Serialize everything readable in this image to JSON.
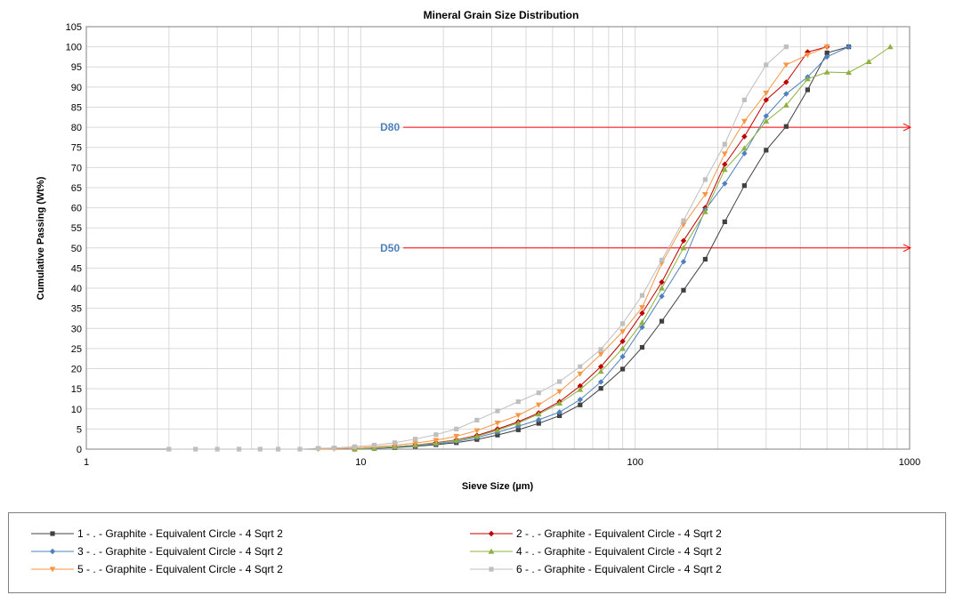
{
  "chart_data": {
    "type": "line",
    "title": "Mineral Grain Size Distribution",
    "xlabel": "Sieve Size (µm)",
    "ylabel": "Cumulative Passing (Wt%)",
    "xscale": "log",
    "xlim": [
      1,
      1000
    ],
    "ylim": [
      0,
      105
    ],
    "x_ticks": [
      "1",
      "10",
      "100",
      "1000"
    ],
    "y_ticks": [
      "0",
      "5",
      "10",
      "15",
      "20",
      "25",
      "30",
      "35",
      "40",
      "45",
      "50",
      "55",
      "60",
      "65",
      "70",
      "75",
      "80",
      "85",
      "90",
      "95",
      "100",
      "105"
    ],
    "grid": true,
    "legend_position": "bottom",
    "reference_lines": [
      {
        "label": "D80",
        "y": 80,
        "color": "#ff0000",
        "label_color": "#4f81bd"
      },
      {
        "label": "D50",
        "y": 50,
        "color": "#ff0000",
        "label_color": "#4f81bd"
      }
    ],
    "series": [
      {
        "name": "1 - . - Graphite - Equivalent Circle - 4 Sqrt 2",
        "color": "#404040",
        "marker": "square",
        "x": [
          9.5,
          11.2,
          13.3,
          15.8,
          18.8,
          22.3,
          26.5,
          31.5,
          37.5,
          44.5,
          53,
          63,
          75,
          90,
          106,
          125,
          150,
          180,
          212,
          250,
          300,
          355,
          425,
          500,
          600
        ],
        "y": [
          0,
          0.2,
          0.4,
          0.7,
          1.1,
          1.6,
          2.4,
          3.5,
          4.8,
          6.4,
          8.3,
          11.0,
          15.1,
          19.9,
          25.3,
          31.8,
          39.5,
          47.2,
          56.5,
          65.5,
          74.3,
          80.2,
          89.3,
          98.5,
          100
        ]
      },
      {
        "name": "2 - . - Graphite - Equivalent Circle - 4 Sqrt 2",
        "color": "#c00000",
        "marker": "diamond",
        "x": [
          9.5,
          11.2,
          13.3,
          15.8,
          18.8,
          22.3,
          26.5,
          31.5,
          37.5,
          44.5,
          53,
          63,
          75,
          90,
          106,
          125,
          150,
          180,
          212,
          250,
          300,
          355,
          425,
          500
        ],
        "y": [
          0,
          0.3,
          0.6,
          1.0,
          1.6,
          2.3,
          3.4,
          5.0,
          6.8,
          9.0,
          11.8,
          15.7,
          20.5,
          26.8,
          33.8,
          41.5,
          51.8,
          60.0,
          70.8,
          77.7,
          86.8,
          91.2,
          98.7,
          100
        ]
      },
      {
        "name": "3 - . - Graphite - Equivalent Circle - 4 Sqrt 2",
        "color": "#4f81bd",
        "marker": "diamond",
        "x": [
          9.5,
          11.2,
          13.3,
          15.8,
          18.8,
          22.3,
          26.5,
          31.5,
          37.5,
          44.5,
          53,
          63,
          75,
          90,
          106,
          125,
          150,
          180,
          212,
          250,
          300,
          355,
          425,
          500,
          600
        ],
        "y": [
          0,
          0.2,
          0.5,
          0.8,
          1.3,
          1.9,
          2.9,
          4.2,
          5.7,
          7.3,
          9.2,
          12.3,
          16.7,
          23.0,
          30.3,
          38.0,
          46.6,
          59.5,
          66.0,
          73.5,
          82.8,
          88.3,
          92.5,
          97.5,
          100
        ]
      },
      {
        "name": "4 - . - Graphite - Equivalent Circle - 4 Sqrt 2",
        "color": "#8db040",
        "marker": "triangle",
        "x": [
          9.5,
          11.2,
          13.3,
          15.8,
          18.8,
          22.3,
          26.5,
          31.5,
          37.5,
          44.5,
          53,
          63,
          75,
          90,
          106,
          125,
          150,
          180,
          212,
          250,
          300,
          355,
          425,
          500,
          600,
          710,
          850
        ],
        "y": [
          0,
          0.3,
          0.6,
          1.0,
          1.5,
          2.2,
          3.2,
          4.7,
          6.5,
          8.7,
          11.4,
          14.8,
          19.3,
          25.0,
          31.5,
          40.0,
          50.0,
          59.0,
          69.5,
          74.8,
          81.5,
          85.5,
          92.0,
          93.7,
          93.6,
          96.3,
          100
        ]
      },
      {
        "name": "5 - . - Graphite - Equivalent Circle - 4 Sqrt 2",
        "color": "#f79646",
        "marker": "triangle-down",
        "x": [
          7,
          8,
          9.5,
          11.2,
          13.3,
          15.8,
          18.8,
          22.3,
          26.5,
          31.5,
          37.5,
          44.5,
          53,
          63,
          75,
          90,
          106,
          125,
          150,
          180,
          212,
          250,
          300,
          355,
          425,
          500
        ],
        "y": [
          0,
          0.1,
          0.3,
          0.6,
          1.0,
          1.5,
          2.2,
          3.2,
          4.6,
          6.5,
          8.4,
          11.0,
          14.3,
          18.7,
          23.6,
          29.2,
          35.2,
          46.2,
          55.8,
          63.3,
          73.4,
          81.5,
          88.5,
          95.5,
          98.0,
          100
        ]
      },
      {
        "name": "6 - . - Graphite - Equivalent Circle - 4 Sqrt 2",
        "color": "#bfbfbf",
        "marker": "square",
        "x": [
          2,
          2.5,
          3,
          3.6,
          4.3,
          5,
          6,
          7,
          8,
          9.5,
          11.2,
          13.3,
          15.8,
          18.8,
          22.3,
          26.5,
          31.5,
          37.5,
          44.5,
          53,
          63,
          75,
          90,
          106,
          125,
          150,
          180,
          212,
          250,
          300,
          355
        ],
        "y": [
          0,
          0,
          0,
          0,
          0,
          0,
          0,
          0.2,
          0.3,
          0.6,
          1.0,
          1.6,
          2.5,
          3.6,
          5.0,
          7.2,
          9.5,
          11.8,
          14.0,
          16.8,
          20.5,
          24.8,
          31.2,
          38.2,
          47.0,
          56.8,
          67.0,
          75.8,
          86.8,
          95.5,
          100
        ]
      }
    ]
  }
}
